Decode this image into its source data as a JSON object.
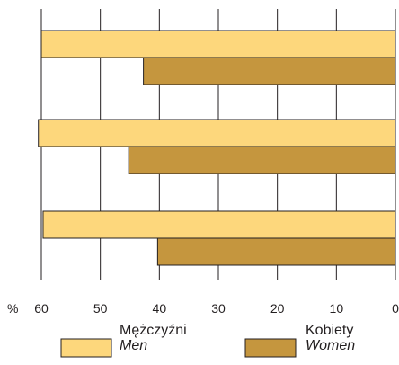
{
  "chart_data": {
    "type": "bar",
    "orientation": "horizontal",
    "x_direction": "reversed",
    "xlim": [
      0,
      60
    ],
    "x_ticks": [
      60,
      50,
      40,
      30,
      20,
      10,
      0
    ],
    "x_unit_label": "%",
    "categories": [
      "",
      "",
      ""
    ],
    "series": [
      {
        "name": "Mężczyźni",
        "name_en": "Men",
        "values": [
          60,
          60.5,
          59.7
        ],
        "color": "#fdd77c"
      },
      {
        "name": "Kobiety",
        "name_en": "Women",
        "values": [
          42.7,
          45.2,
          40.3
        ],
        "color": "#c5963e"
      }
    ],
    "grid": true,
    "legend_placement": "bottom"
  }
}
